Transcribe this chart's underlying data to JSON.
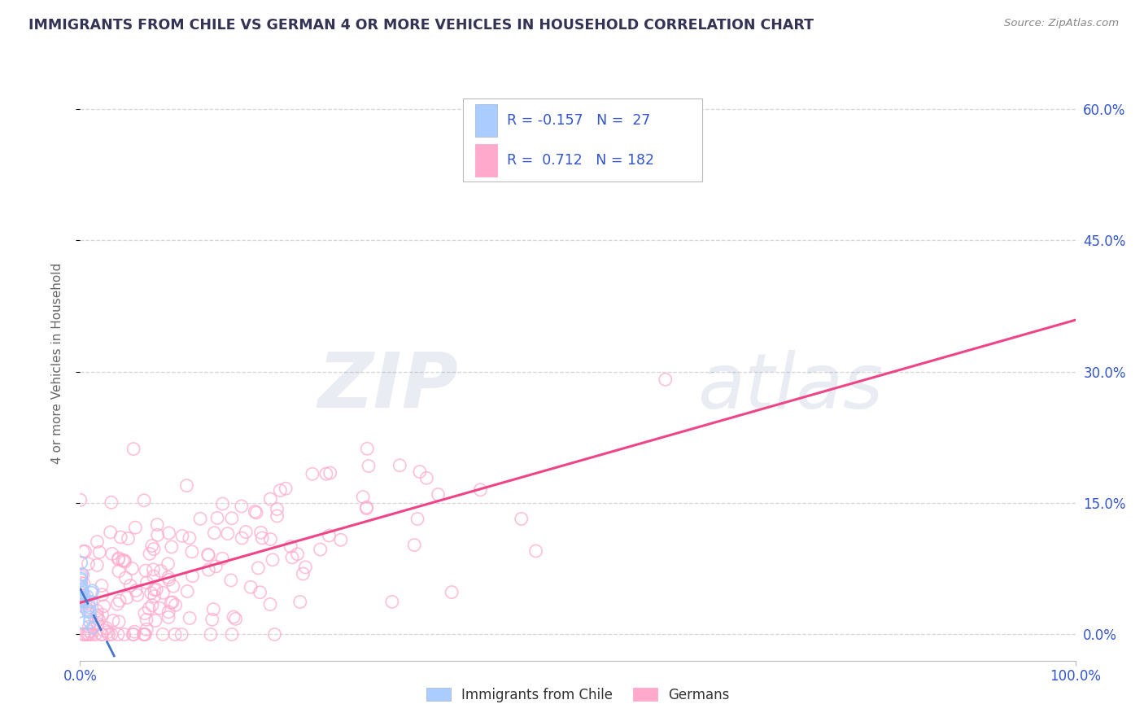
{
  "title": "IMMIGRANTS FROM CHILE VS GERMAN 4 OR MORE VEHICLES IN HOUSEHOLD CORRELATION CHART",
  "source": "Source: ZipAtlas.com",
  "ylabel": "4 or more Vehicles in Household",
  "legend_labels": [
    "Immigrants from Chile",
    "Germans"
  ],
  "r_chile": -0.157,
  "n_chile": 27,
  "r_german": 0.712,
  "n_german": 182,
  "xlim": [
    0.0,
    1.0
  ],
  "ylim": [
    -0.03,
    0.65
  ],
  "xtick_labels": [
    "0.0%",
    "100.0%"
  ],
  "ytick_labels": [
    "0.0%",
    "15.0%",
    "30.0%",
    "45.0%",
    "60.0%"
  ],
  "ytick_values": [
    0.0,
    0.15,
    0.3,
    0.45,
    0.6
  ],
  "color_chile": "#aaccff",
  "color_german": "#ffaacc",
  "line_color_chile": "#4477cc",
  "line_color_german": "#ee4488",
  "watermark_zip": "ZIP",
  "watermark_atlas": "atlas",
  "background_color": "#ffffff",
  "grid_color": "#cccccc",
  "title_color": "#333355",
  "label_color": "#3355cc"
}
